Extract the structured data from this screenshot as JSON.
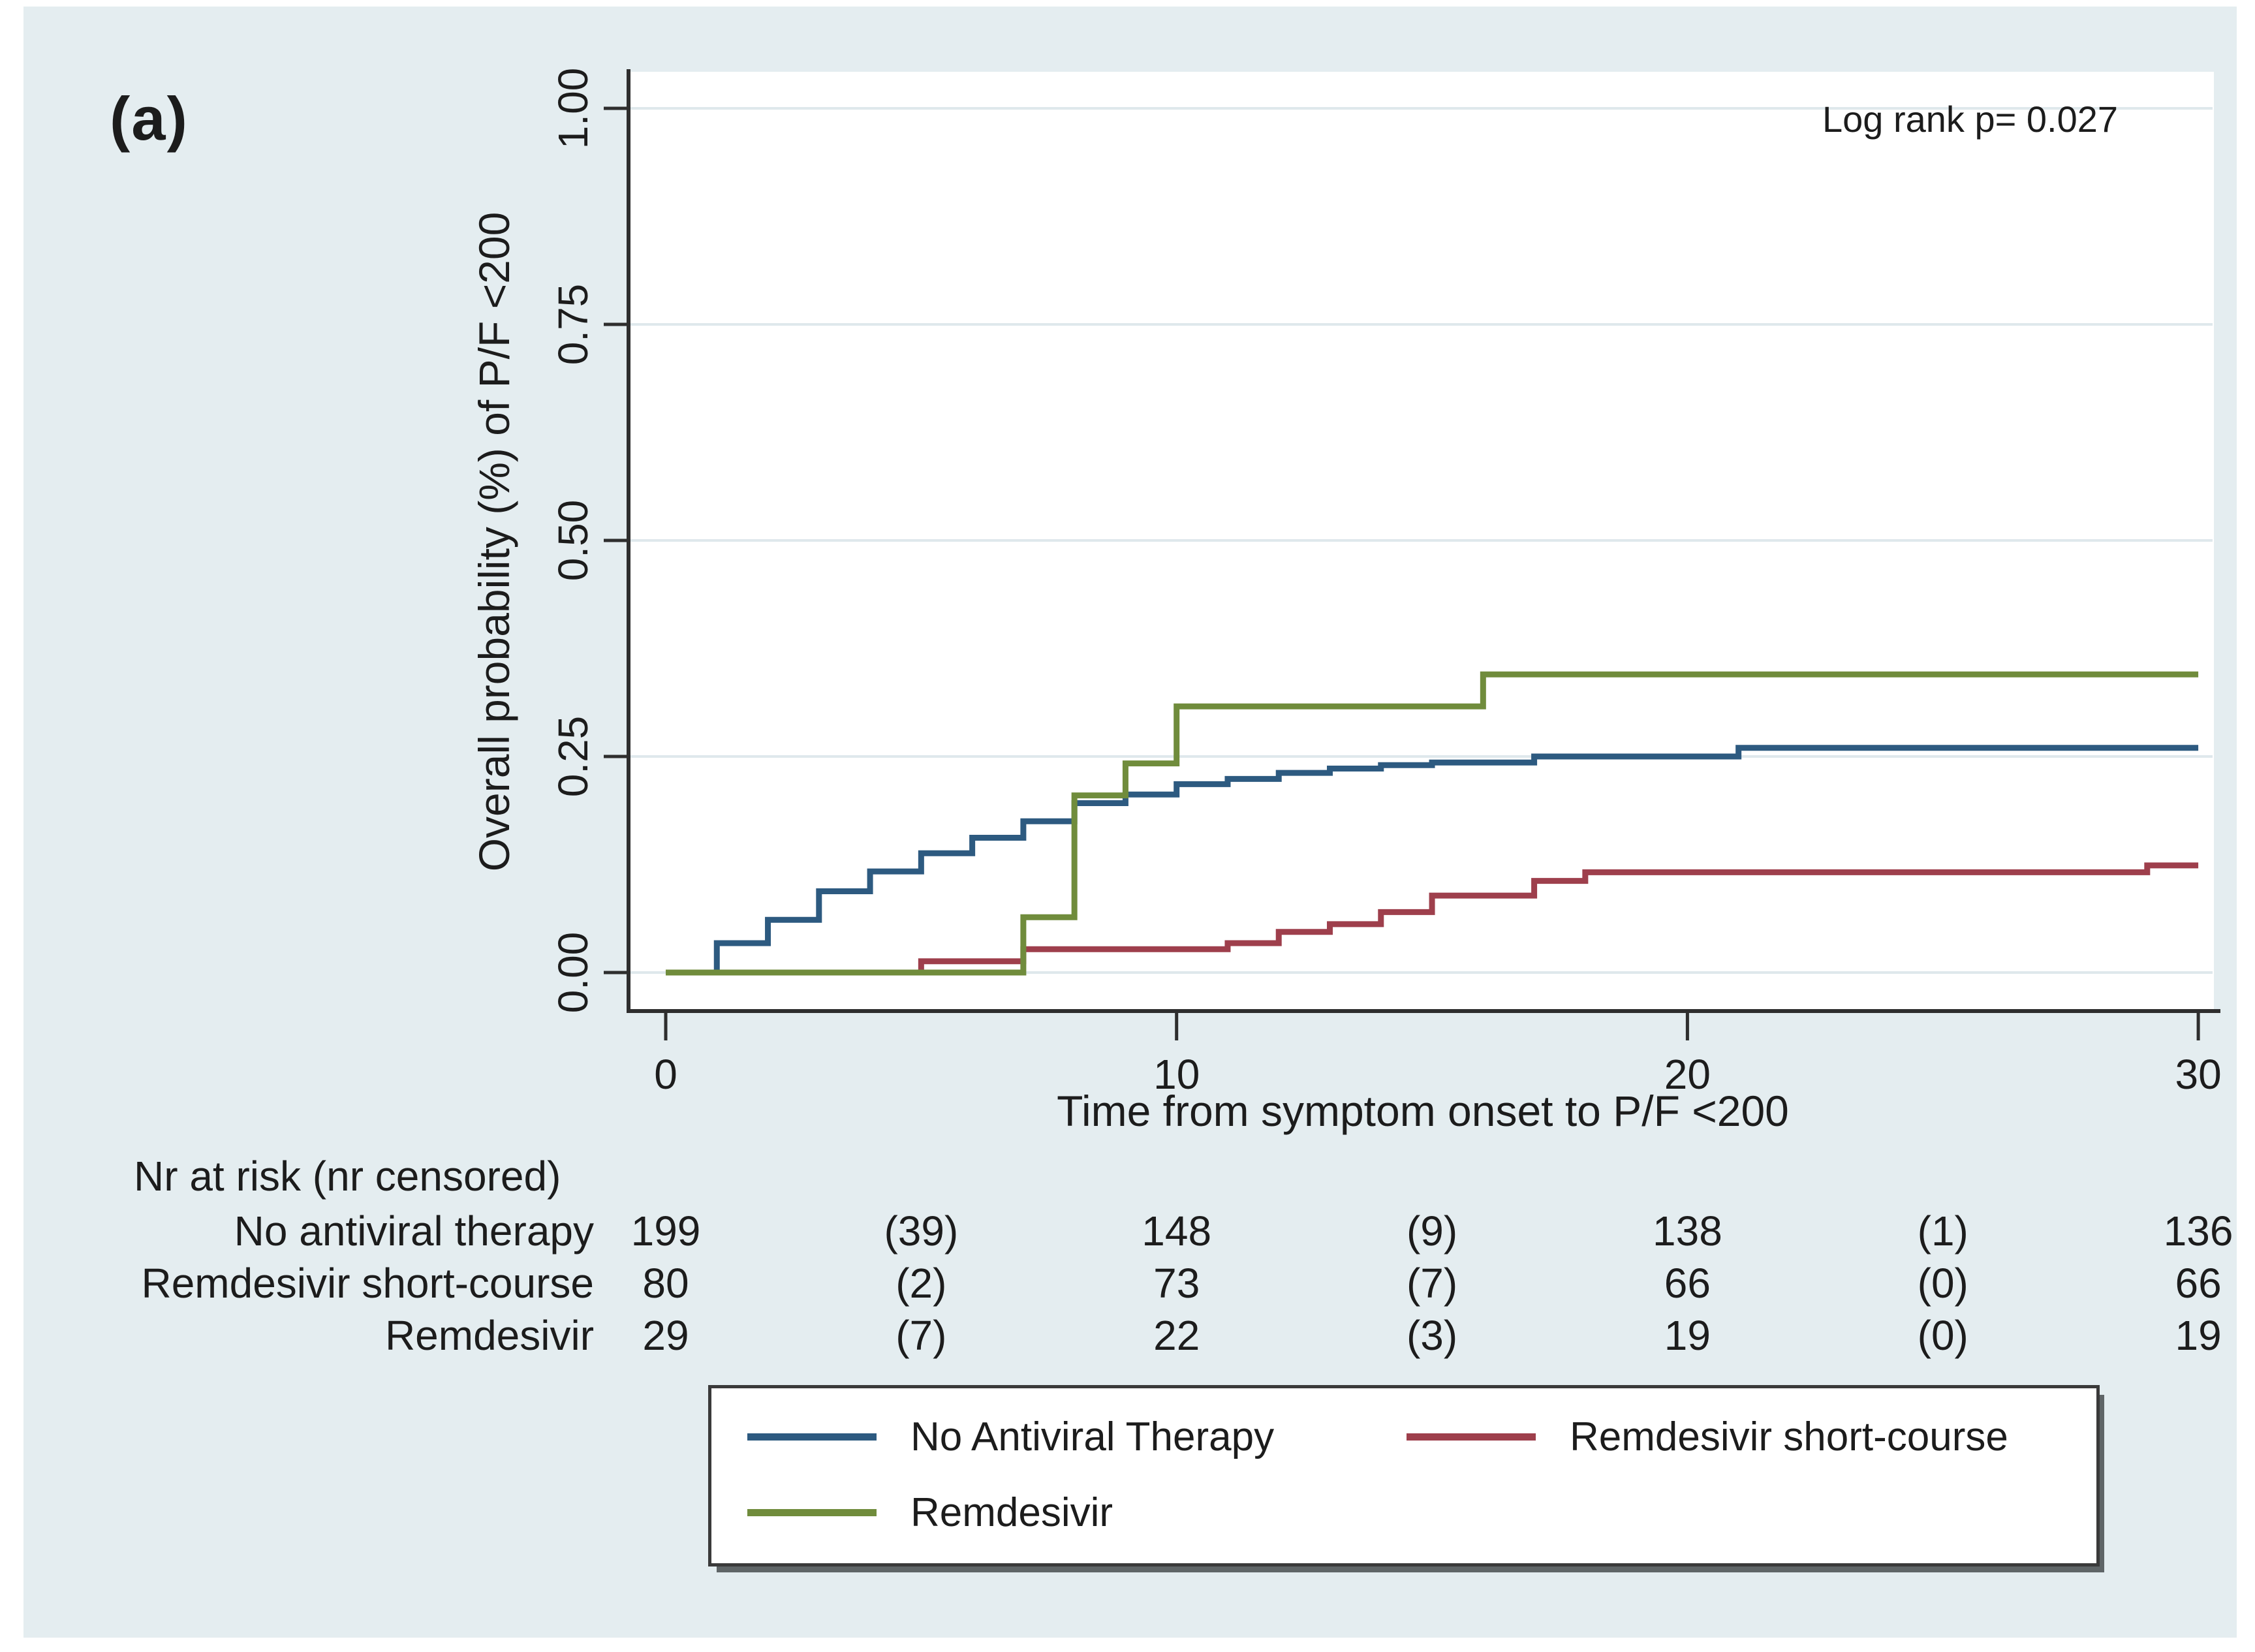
{
  "figure": {
    "panel_label": "(a)",
    "background_color": "#e4edf0",
    "plot_background": "#ffffff",
    "axis_color": "#2e2e2e",
    "grid_color": "#dfe8ec",
    "text_color": "#1c1c1c"
  },
  "chart_data": {
    "type": "line",
    "subtype": "kaplan-meier-cumulative-incidence-steps",
    "annotation": "Log rank p= 0.027",
    "xlabel": "Time from symptom onset to P/F <200",
    "ylabel": "Overall probability (%) of P/F <200",
    "xlim": [
      0,
      30
    ],
    "ylim": [
      0,
      1.0
    ],
    "xticks": [
      "0",
      "10",
      "20",
      "30"
    ],
    "yticks": [
      "0.00",
      "0.25",
      "0.50",
      "0.75",
      "1.00"
    ],
    "grid": true,
    "legend_position": "bottom-box",
    "series": [
      {
        "name": "No Antiviral Therapy",
        "color": "#2d5a80",
        "points": [
          [
            0,
            0
          ],
          [
            1,
            0.034
          ],
          [
            2,
            0.061
          ],
          [
            3,
            0.094
          ],
          [
            4,
            0.117
          ],
          [
            5,
            0.138
          ],
          [
            6,
            0.156
          ],
          [
            7,
            0.175
          ],
          [
            8,
            0.196
          ],
          [
            9,
            0.206
          ],
          [
            10,
            0.218
          ],
          [
            11,
            0.224
          ],
          [
            12,
            0.231
          ],
          [
            13,
            0.236
          ],
          [
            14,
            0.24
          ],
          [
            15,
            0.243
          ],
          [
            17,
            0.25
          ],
          [
            21,
            0.26
          ],
          [
            30,
            0.26
          ]
        ]
      },
      {
        "name": "Remdesivir short-course",
        "color": "#9e3f4c",
        "points": [
          [
            0,
            0
          ],
          [
            5,
            0.013
          ],
          [
            7,
            0.027
          ],
          [
            11,
            0.034
          ],
          [
            12,
            0.047
          ],
          [
            13,
            0.056
          ],
          [
            14,
            0.07
          ],
          [
            15,
            0.089
          ],
          [
            17,
            0.106
          ],
          [
            18,
            0.116
          ],
          [
            29,
            0.124
          ],
          [
            30,
            0.124
          ]
        ]
      },
      {
        "name": "Remdesivir",
        "color": "#708c3c",
        "points": [
          [
            0,
            0
          ],
          [
            7,
            0.064
          ],
          [
            8,
            0.205
          ],
          [
            9,
            0.242
          ],
          [
            10,
            0.308
          ],
          [
            16,
            0.345
          ],
          [
            30,
            0.345
          ]
        ]
      }
    ],
    "risk_table": {
      "header": "Nr at risk (nr censored)",
      "time_columns": [
        0,
        5,
        10,
        15,
        20,
        25,
        30
      ],
      "rows": [
        {
          "label": "No antiviral therapy",
          "values": [
            "199",
            "(39)",
            "148",
            "(9)",
            "138",
            "(1)",
            "136"
          ]
        },
        {
          "label": "Remdesivir short-course",
          "values": [
            "80",
            "(2)",
            "73",
            "(7)",
            "66",
            "(0)",
            "66"
          ]
        },
        {
          "label": "Remdesivir",
          "values": [
            "29",
            "(7)",
            "22",
            "(3)",
            "19",
            "(0)",
            "19"
          ]
        }
      ]
    }
  }
}
